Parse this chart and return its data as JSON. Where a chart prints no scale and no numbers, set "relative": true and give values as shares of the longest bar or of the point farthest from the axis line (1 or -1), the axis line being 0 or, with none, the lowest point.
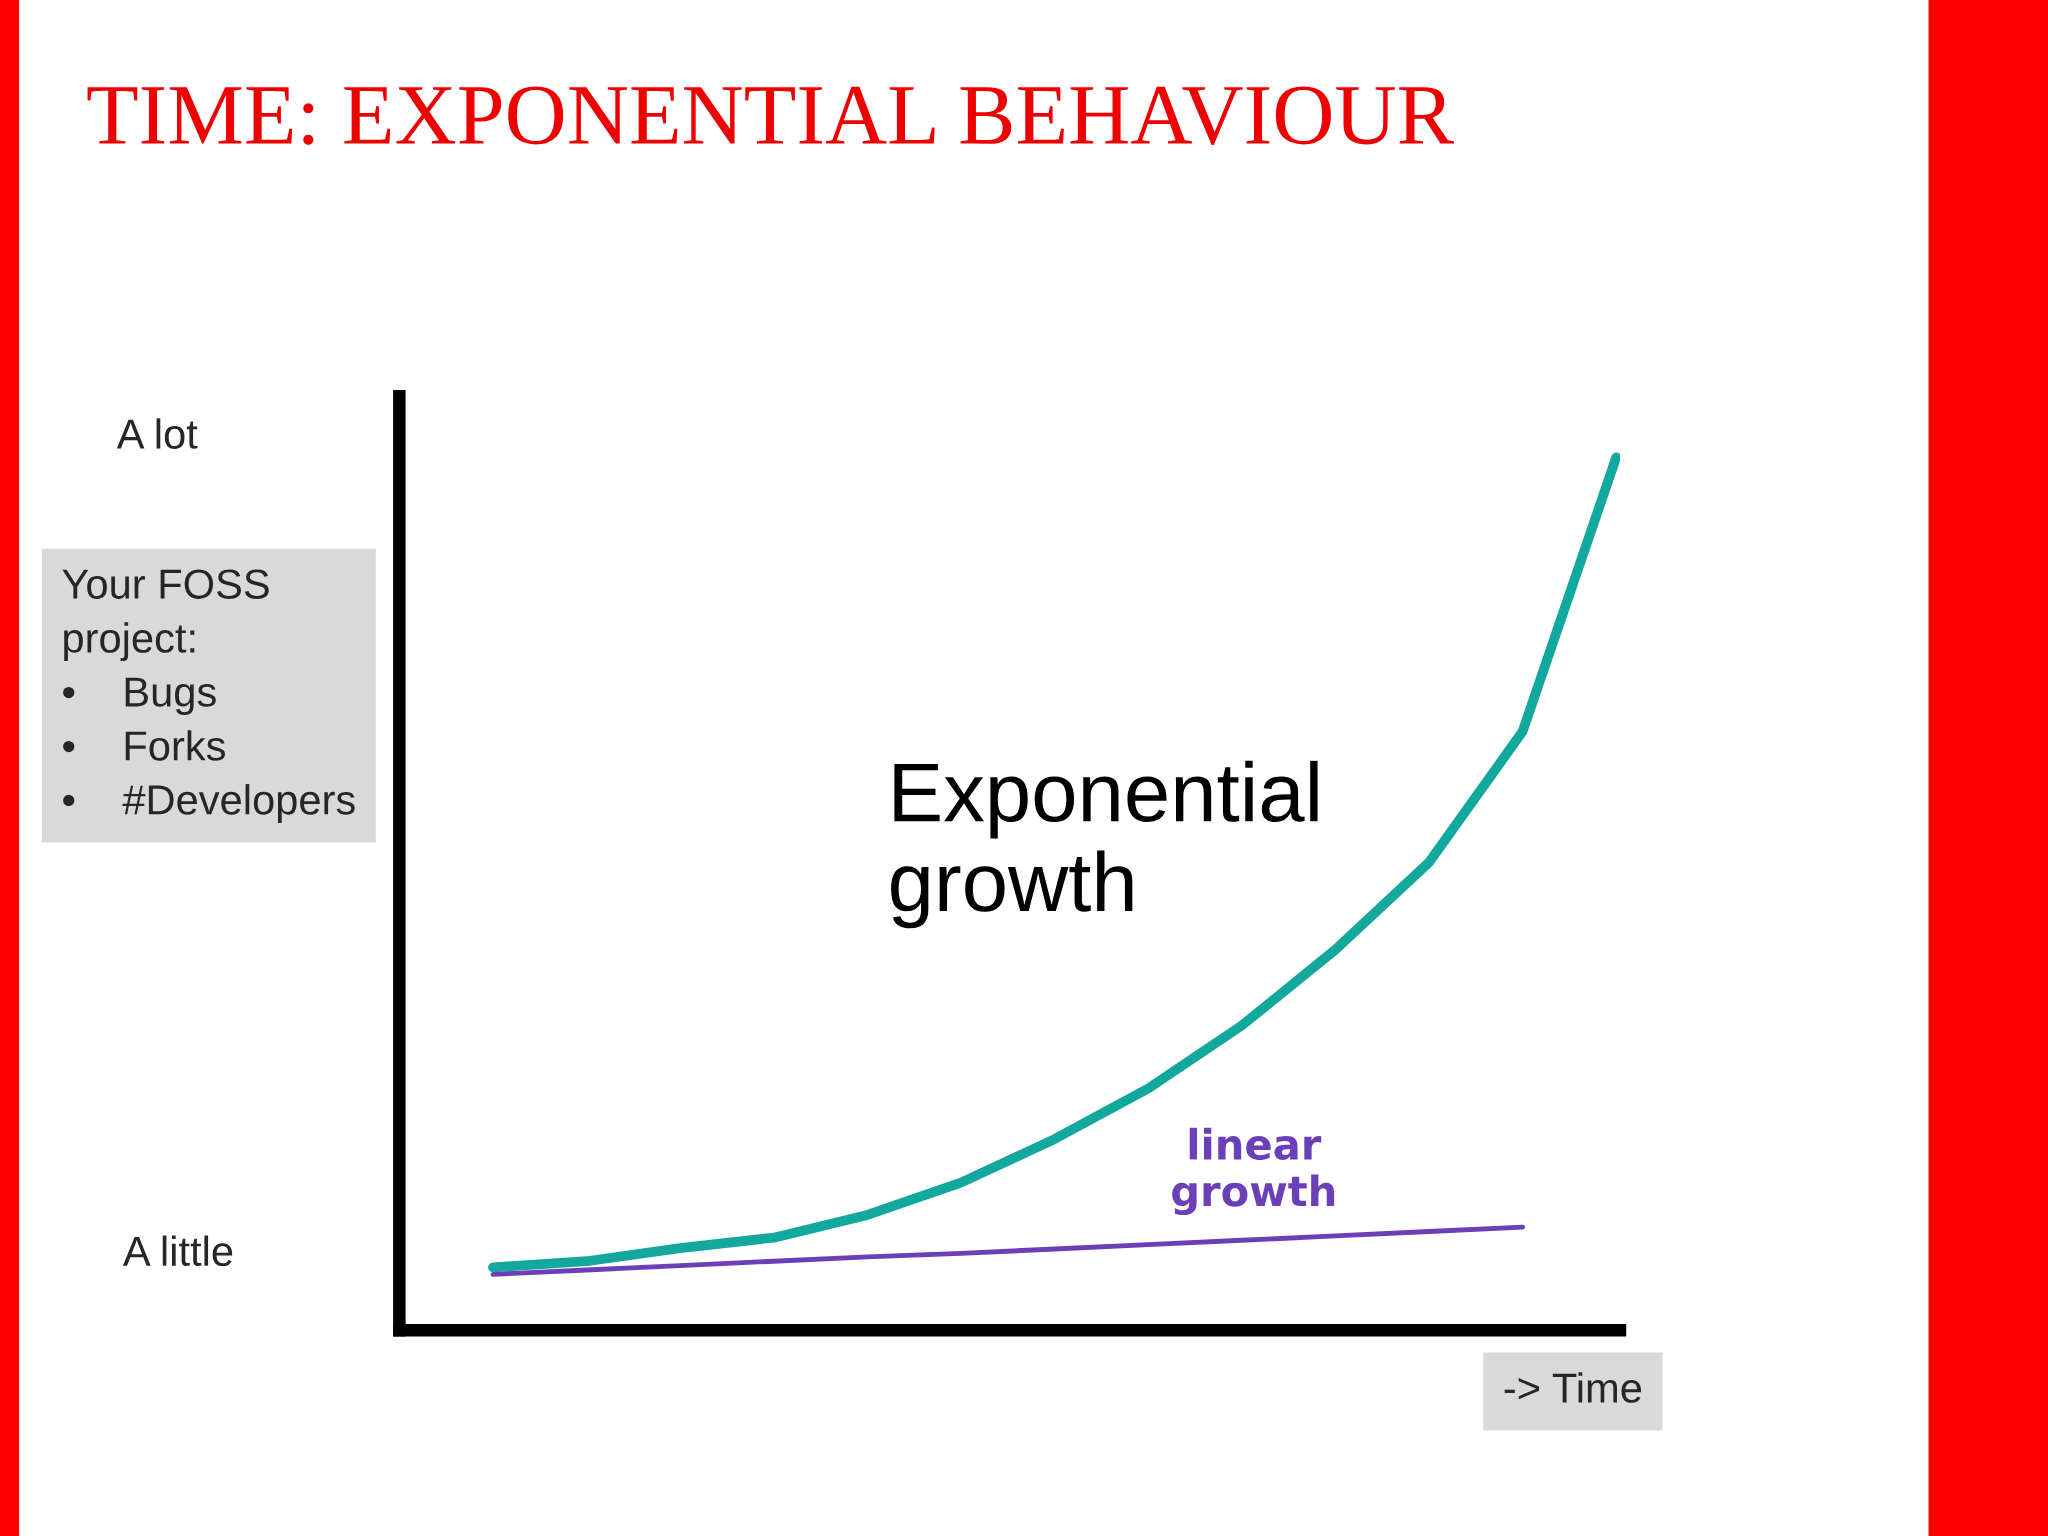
{
  "chart_data": {
    "type": "line",
    "title": "TIME: EXPONENTIAL BEHAVIOUR",
    "xlabel": "-> Time",
    "ylabel": "Your FOSS\nproject:\n•    Bugs\n•    Forks\n•    #Developers",
    "annotations": [
      "A lot",
      "A little"
    ],
    "relative": true,
    "categories": [
      null,
      null,
      null,
      null,
      null,
      null,
      null,
      null,
      null,
      null,
      null,
      null,
      null
    ],
    "series": [
      {
        "name": "Exponential growth",
        "color": "#13a89e",
        "values": [
          0.072,
          0.079,
          0.094,
          0.106,
          0.132,
          0.169,
          0.219,
          0.277,
          0.349,
          0.436,
          0.536,
          0.686,
          1
        ]
      },
      {
        "name": "linear growth",
        "color": "#6a3fb8",
        "values": [
          0.064,
          0.069,
          0.074,
          0.079,
          0.084,
          0.088,
          0.093,
          0.098,
          0.103,
          0.108,
          0.113,
          0.118,
          null
        ]
      }
    ],
    "legend": false,
    "marker": "none",
    "line_style": "solid"
  }
}
